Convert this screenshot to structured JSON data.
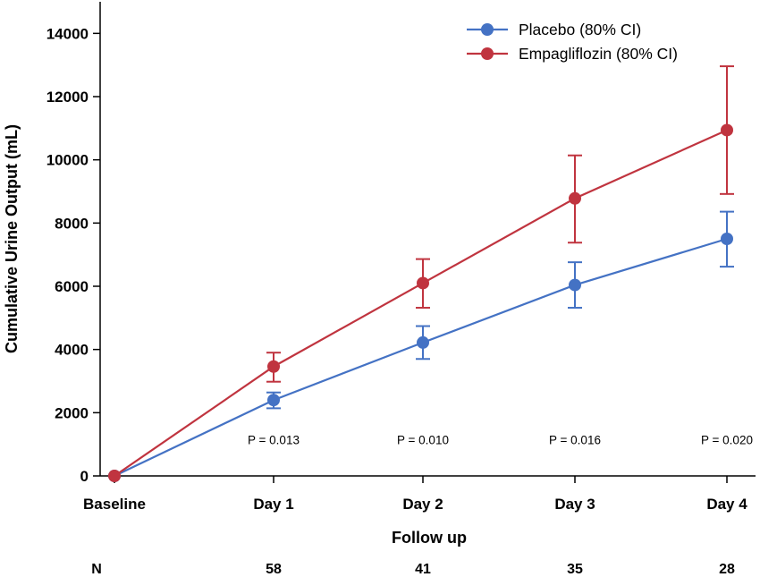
{
  "chart_data": {
    "type": "line",
    "xlabel": "Follow up",
    "ylabel": "Cumulative Urine Output (mL)",
    "categories": [
      "Baseline",
      "Day 1",
      "Day 2",
      "Day 3",
      "Day 4"
    ],
    "ylim": [
      0,
      15000
    ],
    "yticks": [
      0,
      2000,
      4000,
      6000,
      8000,
      10000,
      12000,
      14000
    ],
    "legend_position": "top-right",
    "grid": false,
    "series": [
      {
        "name": "Placebo (80% CI)",
        "color": "#4472c4",
        "values": [
          0,
          2400,
          4220,
          6040,
          7500
        ],
        "ci_lower": [
          0,
          2140,
          3700,
          5320,
          6620
        ],
        "ci_upper": [
          0,
          2640,
          4740,
          6760,
          8360
        ]
      },
      {
        "name": "Empagliflozin (80% CI)",
        "color": "#c0343f",
        "values": [
          0,
          3460,
          6100,
          8780,
          10940
        ],
        "ci_lower": [
          0,
          2980,
          5320,
          7380,
          8920
        ],
        "ci_upper": [
          0,
          3900,
          6860,
          10140,
          12960
        ]
      }
    ],
    "annotations": [
      {
        "category": "Day 1",
        "text": "P = 0.013",
        "y": 1150
      },
      {
        "category": "Day 2",
        "text": "P = 0.010",
        "y": 1150
      },
      {
        "category": "Day 3",
        "text": "P = 0.016",
        "y": 1150
      },
      {
        "category": "Day 4",
        "text": "P = 0.020",
        "y": 1150
      }
    ],
    "n_row": {
      "label": "N",
      "values": [
        "",
        "58",
        "41",
        "35",
        "28"
      ]
    }
  }
}
